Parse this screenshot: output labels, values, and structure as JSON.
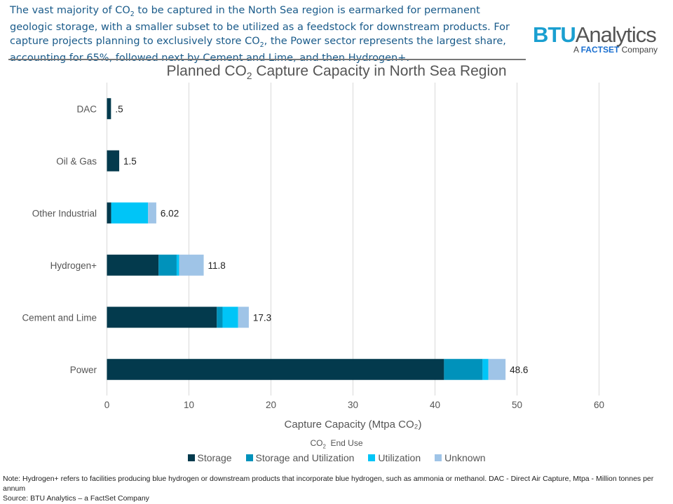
{
  "intro": {
    "p1": "The vast majority of CO",
    "sub1": "2",
    "p2": " to be captured in the North Sea region is earmarked for permanent geologic storage, with a smaller subset to be utilized as a feedstock for downstream products. For capture projects planning to exclusively store CO",
    "sub2": "2",
    "p3": ", the Power sector represents the largest share, accounting for 65%, followed next by Cement and Lime, and then Hydrogen+."
  },
  "logo": {
    "brand": "BTU",
    "name": "Analytics",
    "tag_a": "A ",
    "tag_fs": "FACTSET",
    "tag_c": " Company"
  },
  "chart_data": {
    "type": "bar",
    "orientation": "horizontal",
    "stacked": true,
    "title": {
      "pre": "Planned CO",
      "sub": "2",
      "post": " Capture Capacity in North Sea Region"
    },
    "xlabel": "Capture Capacity (Mtpa CO₂)",
    "xlim": [
      0,
      60
    ],
    "xticks": [
      0,
      10,
      20,
      30,
      40,
      50,
      60
    ],
    "grid": true,
    "categories": [
      "DAC",
      "Oil & Gas",
      "Other Industrial",
      "Hydrogen+",
      "Cement and Lime",
      "Power"
    ],
    "totals_labels": [
      ".5",
      "1.5",
      "6.02",
      "11.8",
      "17.3",
      "48.6"
    ],
    "legend": {
      "title_pre": "CO",
      "title_sub": "2",
      "title_post": "  End Use",
      "position": "bottom"
    },
    "series": [
      {
        "name": "Storage",
        "color": "#033a4d",
        "values": [
          0.5,
          1.5,
          0.52,
          6.3,
          13.4,
          41.1
        ]
      },
      {
        "name": "Storage and Utilization",
        "color": "#0092bb",
        "values": [
          0,
          0,
          0,
          2.2,
          0.7,
          4.7
        ]
      },
      {
        "name": "Utilization",
        "color": "#00c5f7",
        "values": [
          0,
          0,
          4.5,
          0.3,
          1.9,
          0.7
        ]
      },
      {
        "name": "Unknown",
        "color": "#9fc4e7",
        "values": [
          0,
          0,
          1.0,
          3.0,
          1.3,
          2.1
        ]
      }
    ]
  },
  "footer": {
    "note": "Note: Hydrogen+ refers to facilities producing blue hydrogen or downstream products that incorporate blue hydrogen, such as ammonia or methanol. DAC - Direct Air Capture, Mtpa - Million tonnes per annum",
    "source": "Source: BTU Analytics – a FactSet Company"
  }
}
